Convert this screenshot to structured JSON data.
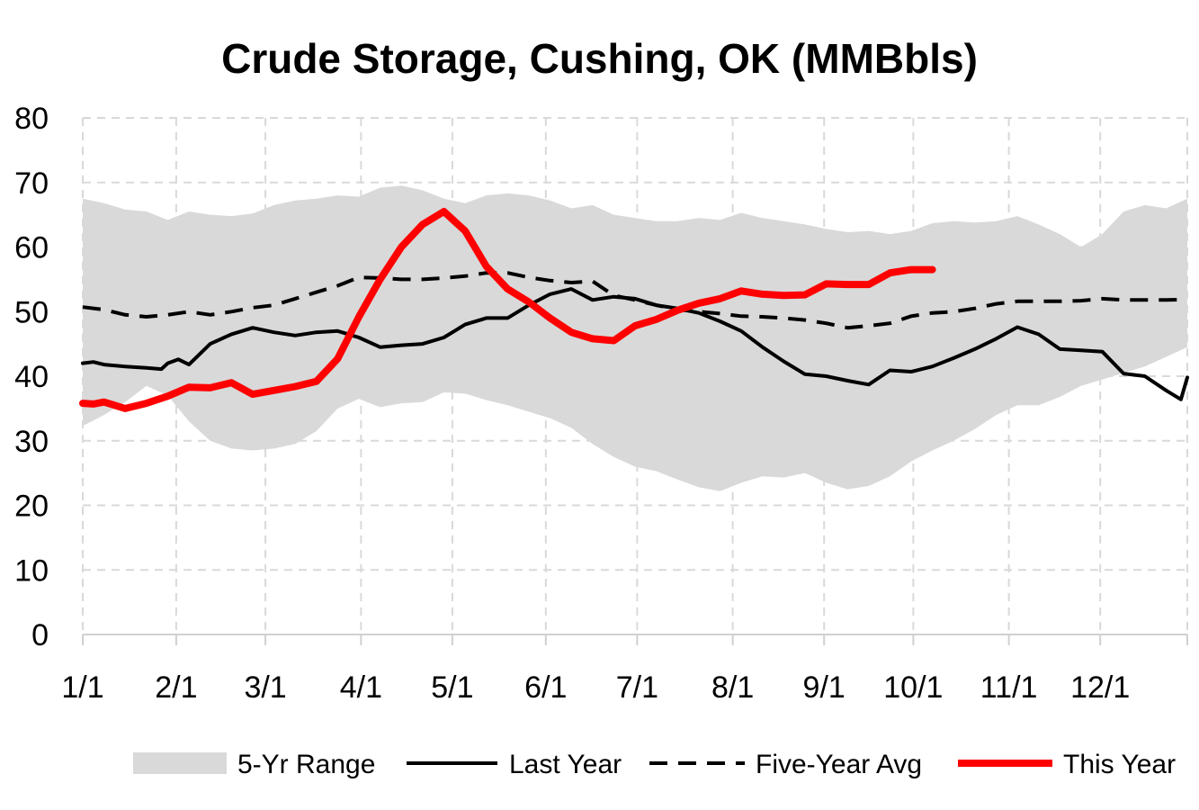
{
  "chart_data": {
    "type": "area",
    "title": "Crude Storage, Cushing, OK (MMBbls)",
    "xlabel": "",
    "ylabel": "",
    "ylim": [
      0,
      80
    ],
    "yticks": [
      0,
      10,
      20,
      30,
      40,
      50,
      60,
      70,
      80
    ],
    "xlim": [
      1,
      53
    ],
    "xtick_labels": [
      "1/1",
      "2/1",
      "3/1",
      "4/1",
      "5/1",
      "6/1",
      "7/1",
      "8/1",
      "9/1",
      "10/1",
      "11/1",
      "12/1"
    ],
    "xtick_weeks": [
      1,
      5.4,
      9.6,
      14.1,
      18.4,
      22.8,
      27.1,
      31.6,
      35.9,
      40.1,
      44.6,
      48.9
    ],
    "grid": true,
    "legend_position": "bottom",
    "colors": {
      "range": "#d9d9d9",
      "last_year": "#000000",
      "five_year_avg": "#000000",
      "this_year": "#ff0000",
      "grid": "#d9d9d9"
    },
    "series": [
      {
        "name": "5-Yr Range",
        "kind": "range",
        "x": [
          1,
          2,
          3,
          4,
          5,
          6,
          7,
          8,
          9,
          10,
          11,
          12,
          13,
          14,
          15,
          16,
          17,
          18,
          19,
          20,
          21,
          22,
          23,
          24,
          25,
          26,
          27,
          28,
          29,
          30,
          31,
          32,
          33,
          34,
          35,
          36,
          37,
          38,
          39,
          40,
          41,
          42,
          43,
          44,
          45,
          46,
          47,
          48,
          49,
          50,
          51,
          52,
          53
        ],
        "high": [
          67.5,
          66.8,
          65.8,
          65.5,
          64.2,
          65.5,
          65.0,
          64.8,
          65.2,
          66.5,
          67.2,
          67.5,
          68.0,
          67.8,
          69.2,
          69.5,
          68.8,
          67.5,
          66.8,
          68.0,
          68.3,
          68.0,
          67.2,
          66.0,
          66.5,
          65.0,
          64.5,
          64.0,
          64.0,
          64.5,
          64.2,
          65.3,
          64.5,
          64.0,
          63.5,
          62.8,
          62.3,
          62.5,
          62.0,
          62.5,
          63.7,
          64.0,
          63.8,
          64.0,
          64.8,
          63.5,
          62.0,
          60.0,
          62.0,
          65.5,
          66.5,
          66.0,
          67.5
        ],
        "low": [
          32.3,
          34.0,
          36.0,
          38.5,
          37.0,
          33.0,
          30.0,
          28.8,
          28.5,
          28.8,
          29.5,
          31.5,
          35.0,
          36.5,
          35.2,
          35.8,
          36.0,
          37.5,
          37.3,
          36.3,
          35.5,
          34.5,
          33.5,
          32.0,
          29.5,
          27.5,
          26.0,
          25.3,
          24.0,
          22.8,
          22.2,
          23.5,
          24.5,
          24.3,
          25.0,
          23.5,
          22.5,
          23.0,
          24.5,
          26.8,
          28.5,
          30.0,
          31.8,
          34.0,
          35.5,
          35.5,
          36.8,
          38.5,
          39.5,
          40.5,
          41.5,
          43.0,
          44.5
        ]
      },
      {
        "name": "Last Year",
        "kind": "line",
        "x": [
          1,
          1.5,
          2,
          3,
          4,
          4.7,
          5,
          5.5,
          6,
          7,
          8,
          9,
          10,
          11,
          12,
          13,
          14,
          15,
          16,
          17,
          18,
          19,
          20,
          21,
          22,
          23,
          24,
          25,
          26,
          27,
          28,
          29,
          30,
          31,
          32,
          33,
          34,
          35,
          36,
          37,
          38,
          39,
          40,
          41,
          42,
          43,
          44,
          45,
          46,
          47,
          48,
          49,
          50,
          51,
          52,
          52.7,
          53
        ],
        "values": [
          42.0,
          42.2,
          41.8,
          41.5,
          41.3,
          41.1,
          42.0,
          42.6,
          41.8,
          45.0,
          46.5,
          47.5,
          46.8,
          46.3,
          46.8,
          47.0,
          46.0,
          44.5,
          44.8,
          45.0,
          46.0,
          48.0,
          49.0,
          49.0,
          51.0,
          52.7,
          53.5,
          51.8,
          52.3,
          52.0,
          51.0,
          50.5,
          49.8,
          48.5,
          47.0,
          44.5,
          42.3,
          40.3,
          40.0,
          39.3,
          38.7,
          40.9,
          40.7,
          41.5,
          42.8,
          44.2,
          45.8,
          47.6,
          46.5,
          44.2,
          44.0,
          43.8,
          40.4,
          40.0,
          37.8,
          36.4,
          39.8
        ]
      },
      {
        "name": "Five-Year Avg",
        "kind": "dashed",
        "x": [
          1,
          2,
          3,
          4,
          5,
          6,
          7,
          8,
          9,
          10,
          11,
          12,
          13,
          14,
          15,
          16,
          17,
          18,
          19,
          20,
          21,
          22,
          23,
          24,
          25,
          26,
          27,
          28,
          29,
          30,
          31,
          32,
          33,
          34,
          35,
          36,
          37,
          38,
          39,
          40,
          41,
          42,
          43,
          44,
          45,
          46,
          47,
          48,
          49,
          50,
          51,
          52,
          53
        ],
        "values": [
          50.7,
          50.3,
          49.5,
          49.2,
          49.5,
          50.0,
          49.5,
          50.0,
          50.6,
          51.0,
          52.0,
          53.0,
          54.0,
          55.3,
          55.2,
          55.0,
          55.0,
          55.2,
          55.5,
          56.0,
          56.0,
          55.3,
          54.8,
          54.5,
          54.7,
          52.5,
          51.8,
          51.0,
          50.3,
          50.0,
          49.7,
          49.3,
          49.2,
          49.0,
          48.7,
          48.2,
          47.5,
          47.8,
          48.2,
          49.3,
          49.8,
          50.0,
          50.5,
          51.2,
          51.6,
          51.6,
          51.6,
          51.7,
          52.0,
          51.8,
          51.8,
          51.8,
          51.9
        ]
      },
      {
        "name": "This Year",
        "kind": "line",
        "x": [
          1,
          1.5,
          2,
          3,
          4,
          5,
          6,
          7,
          8,
          9,
          10,
          11,
          12,
          13,
          14,
          15,
          16,
          17,
          18,
          19,
          20,
          21,
          22,
          23,
          24,
          25,
          26,
          27,
          28,
          29,
          30,
          31,
          32,
          33,
          34,
          35,
          36,
          37,
          38,
          39,
          40,
          41
        ],
        "values": [
          35.8,
          35.7,
          36.0,
          35.0,
          35.8,
          36.9,
          38.3,
          38.2,
          39.0,
          37.2,
          37.8,
          38.4,
          39.2,
          42.7,
          49.2,
          55.0,
          60.0,
          63.5,
          65.5,
          62.5,
          57.0,
          53.5,
          51.5,
          49.0,
          46.8,
          45.8,
          45.5,
          47.8,
          48.8,
          50.2,
          51.3,
          52.0,
          53.2,
          52.7,
          52.5,
          52.6,
          54.3,
          54.2,
          54.2,
          56.0,
          56.5,
          56.5
        ]
      }
    ]
  }
}
